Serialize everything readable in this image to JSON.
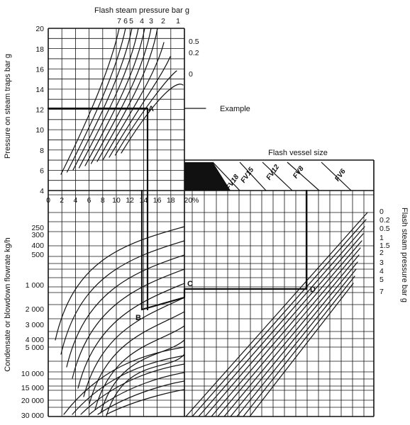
{
  "title_top": "Flash steam pressure bar g",
  "title_right": "Flash steam pressure bar g",
  "ylabel_upper": "Pressure on steam traps bar g",
  "ylabel_lower": "Condensate or blowdown flowrate kg/h",
  "vessel_title": "Flash vessel size",
  "example_label": "Example",
  "upper_y_ticks": [
    "4",
    "6",
    "8",
    "10",
    "12",
    "14",
    "16",
    "18",
    "20"
  ],
  "pct_ticks": [
    "0",
    "2",
    "4",
    "6",
    "8",
    "10",
    "12",
    "14",
    "16",
    "18",
    "20%"
  ],
  "top_curve_labels": [
    "7",
    "6",
    "5",
    "4",
    "3",
    "2",
    "1"
  ],
  "side_curve_labels": [
    "0.5",
    "0.2",
    "0"
  ],
  "flow_ticks": [
    "250",
    "300",
    "400",
    "500",
    "1 000",
    "2 000",
    "3 000",
    "4 000",
    "5 000",
    "10 000",
    "15 000",
    "20 000",
    "30 000"
  ],
  "vessel_sizes": [
    "FV18",
    "FV15",
    "FV12",
    "FV8",
    "FV6"
  ],
  "right_pressure_ticks": [
    "0",
    "0.2",
    "0.5",
    "1",
    "1.5",
    "2",
    "3",
    "4",
    "5",
    "7"
  ],
  "points": {
    "a": "A",
    "b": "B",
    "c": "C",
    "d": "D"
  },
  "colors": {
    "ink": "#111111",
    "background": "#ffffff"
  }
}
